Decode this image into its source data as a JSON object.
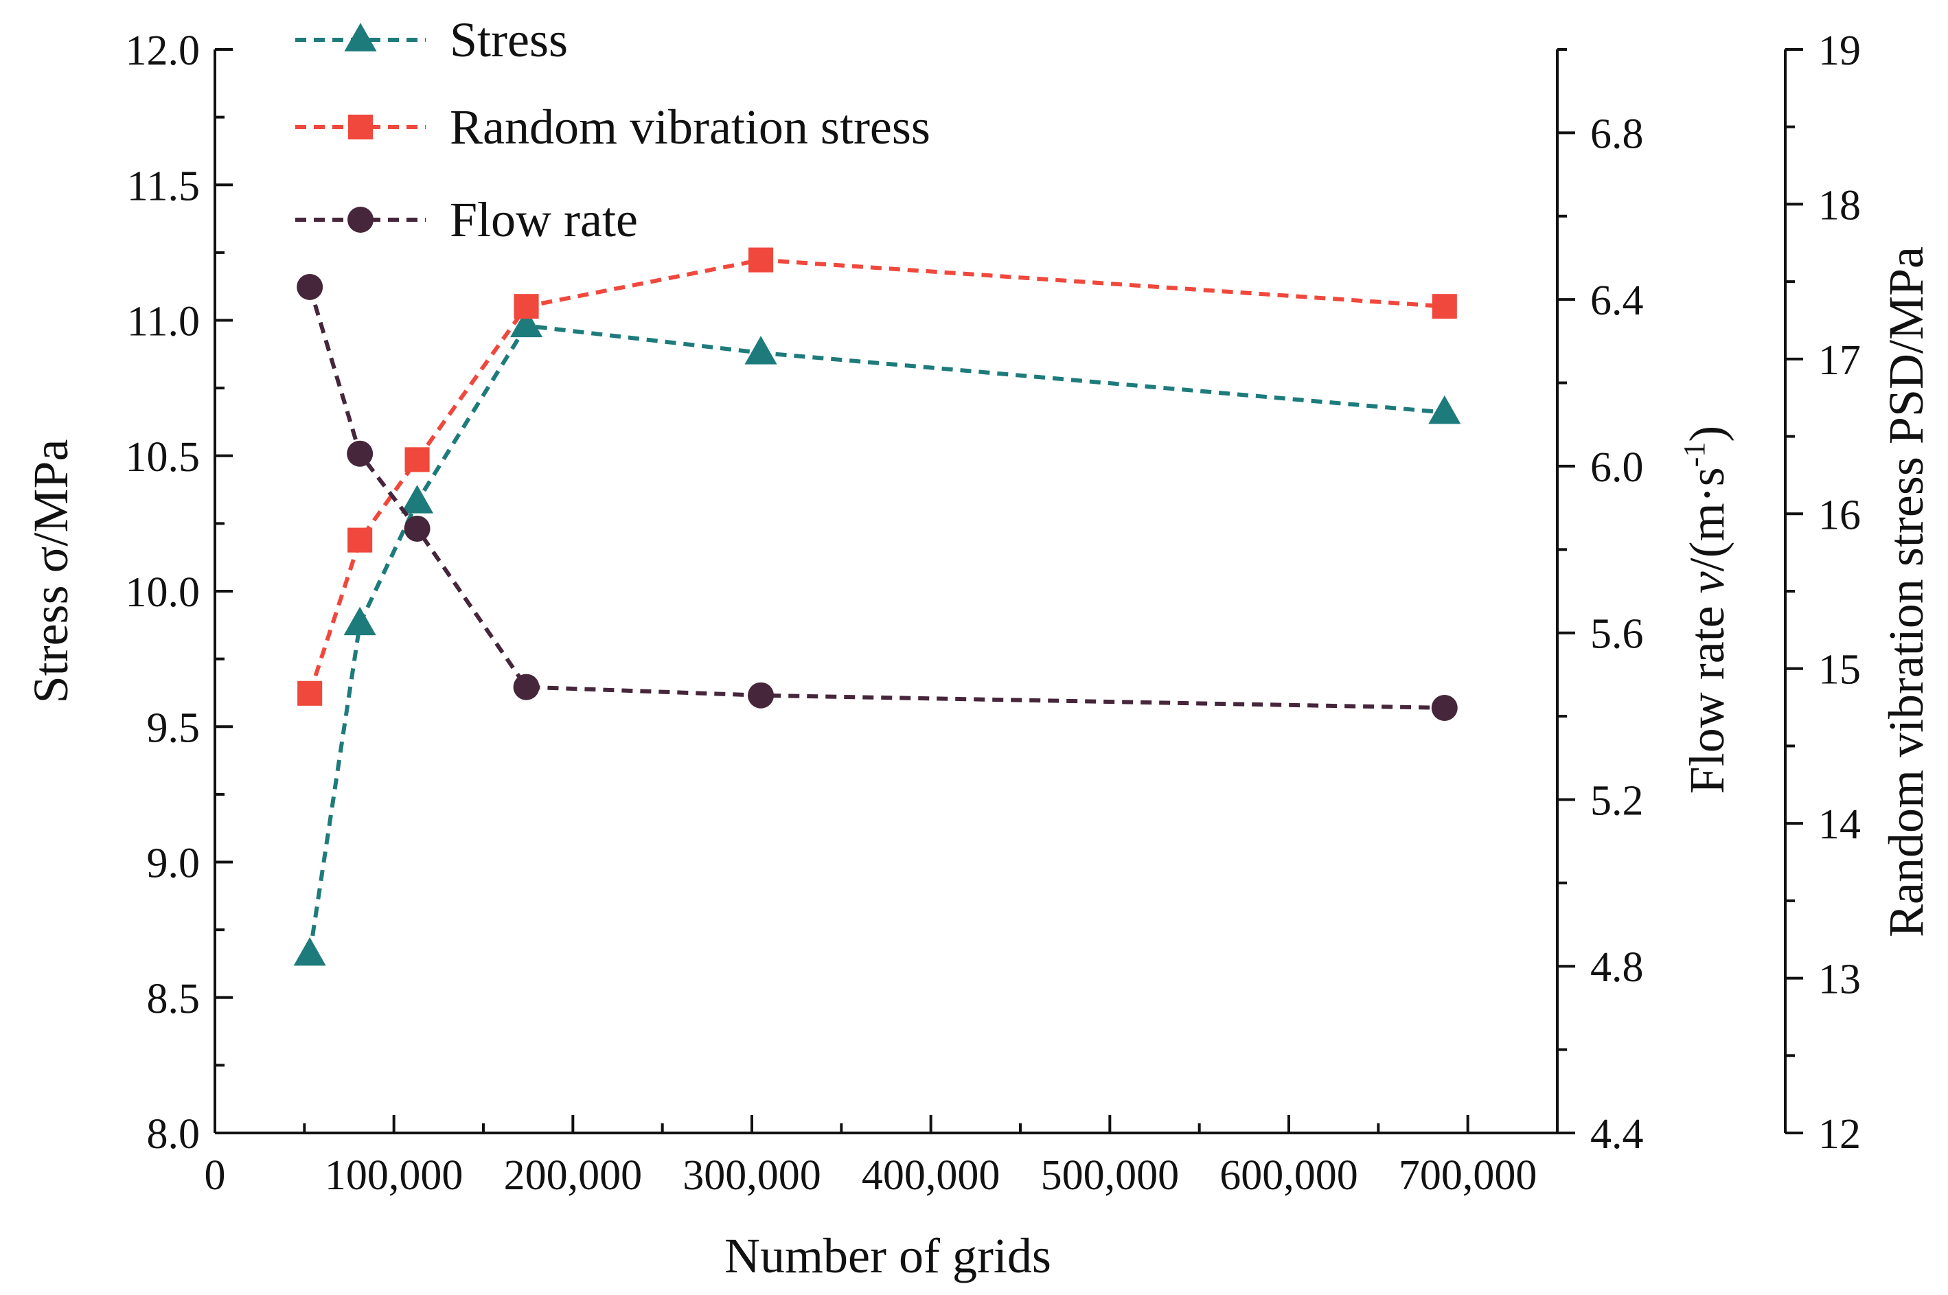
{
  "chart_data": {
    "type": "line",
    "xlabel": "Number of grids",
    "ylabel": "Stress σ/MPa",
    "y2label_main": "Flow rate ",
    "y2label_var": "v",
    "y2label_unit": "/(m·s",
    "y2label_sup": "-1",
    "y2label_close": ")",
    "y3label": "Random vibration stress PSD/MPa",
    "x_ticks": [
      {
        "pos": 0,
        "label": "0"
      },
      {
        "pos": 100000,
        "label": "100,000"
      },
      {
        "pos": 200000,
        "label": "200,000"
      },
      {
        "pos": 300000,
        "label": "300,000"
      },
      {
        "pos": 400000,
        "label": "400,000"
      },
      {
        "pos": 500000,
        "label": "500,000"
      },
      {
        "pos": 600000,
        "label": "600,000"
      },
      {
        "pos": 700000,
        "label": "700,000"
      }
    ],
    "x_range": [
      0,
      750000
    ],
    "y_left": {
      "range": [
        8.0,
        12.0
      ],
      "ticks": [
        "8.0",
        "8.5",
        "9.0",
        "9.5",
        "10.0",
        "10.5",
        "11.0",
        "11.5",
        "12.0"
      ]
    },
    "y_mid": {
      "range": [
        4.4,
        7.0
      ],
      "ticks": [
        "4.4",
        "4.8",
        "5.2",
        "5.6",
        "6.0",
        "6.4",
        "6.8"
      ]
    },
    "y_right": {
      "range": [
        12,
        19
      ],
      "ticks": [
        "12",
        "13",
        "14",
        "15",
        "16",
        "17",
        "18",
        "19"
      ]
    },
    "series": [
      {
        "name": "Stress",
        "axis": "left",
        "color": "#1e7b7b",
        "marker": "triangle",
        "x": [
          53000,
          81000,
          113000,
          174000,
          305000,
          687000
        ],
        "y": [
          8.66,
          9.88,
          10.33,
          10.98,
          10.88,
          10.66
        ]
      },
      {
        "name": "Random vibration stress",
        "axis": "right",
        "color": "#f0483c",
        "marker": "square",
        "x": [
          53000,
          81000,
          113000,
          174000,
          305000,
          687000
        ],
        "y": [
          14.84,
          15.83,
          16.35,
          17.34,
          17.64,
          17.34
        ]
      },
      {
        "name": "Flow rate",
        "axis": "mid",
        "color": "#45263a",
        "marker": "circle",
        "x": [
          53000,
          81000,
          113000,
          174000,
          305000,
          687000
        ],
        "y": [
          6.43,
          6.03,
          5.85,
          5.47,
          5.45,
          5.42
        ]
      }
    ],
    "legend_position": "top-left"
  }
}
